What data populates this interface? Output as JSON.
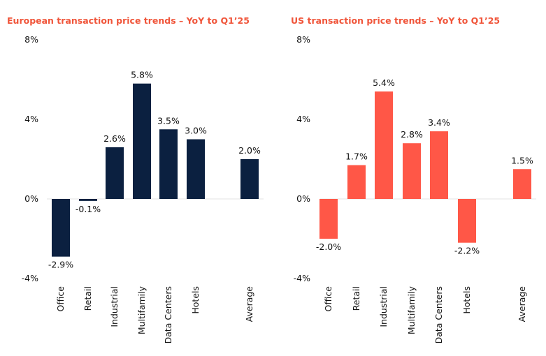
{
  "chart_data": [
    {
      "type": "bar",
      "title": "European transaction price trends – YoY to Q1’25",
      "title_color": "#F0553A",
      "bar_color": "#0B2040",
      "categories": [
        "Office",
        "Retail",
        "Industrial",
        "Multifamily",
        "Data Centers",
        "Hotels",
        "",
        "Average"
      ],
      "values": [
        -2.9,
        -0.1,
        2.6,
        5.8,
        3.5,
        3.0,
        null,
        2.0
      ],
      "value_labels": [
        "-2.9%",
        "-0.1%",
        "2.6%",
        "5.8%",
        "3.5%",
        "3.0%",
        "",
        "2.0%"
      ],
      "y_ticks": [
        "8%",
        "4%",
        "0%",
        "-4%"
      ],
      "ylim": [
        -4,
        8
      ],
      "grid": false
    },
    {
      "type": "bar",
      "title": "US transaction price trends – YoY to Q1’25",
      "title_color": "#F0553A",
      "bar_color": "#FF5747",
      "categories": [
        "Office",
        "Retail",
        "Industrial",
        "Multifamily",
        "Data Centers",
        "Hotels",
        "",
        "Average"
      ],
      "values": [
        -2.0,
        1.7,
        5.4,
        2.8,
        3.4,
        -2.2,
        null,
        1.5
      ],
      "value_labels": [
        "-2.0%",
        "1.7%",
        "5.4%",
        "2.8%",
        "3.4%",
        "-2.2%",
        "",
        "1.5%"
      ],
      "y_ticks": [
        "8%",
        "4%",
        "0%",
        "-4%"
      ],
      "ylim": [
        -4,
        8
      ],
      "grid": false
    }
  ]
}
